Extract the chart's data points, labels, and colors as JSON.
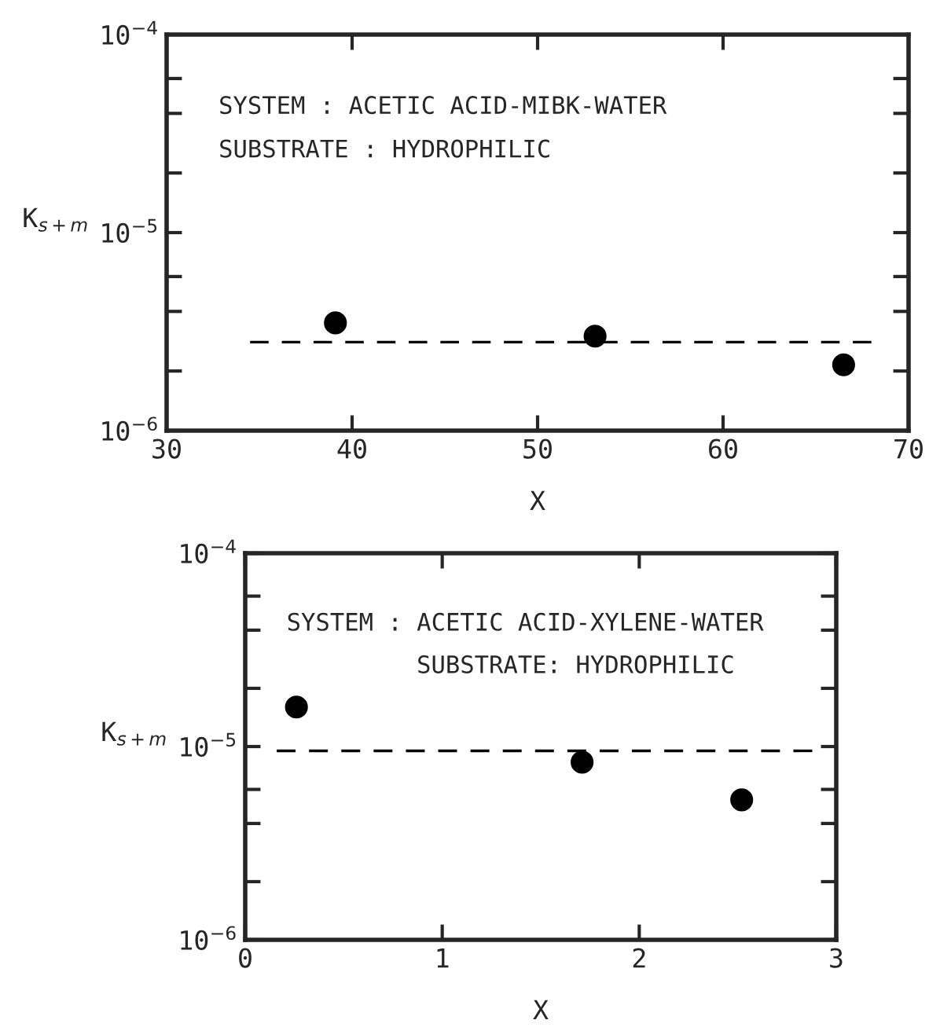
{
  "chart_data": [
    {
      "type": "scatter",
      "xlabel": "X",
      "ylabel": "K$_{s+m}$",
      "log": "y",
      "marker": "circle",
      "color": "#000000",
      "x": [
        39.1,
        53.1,
        66.5
      ],
      "values": [
        3.5e-06,
        3e-06,
        2.15e-06
      ],
      "series": [
        {
          "type": "line",
          "line_style": "dashed",
          "marker": "none",
          "color": "#000000",
          "x": [
            34.5,
            68
          ],
          "values": [
            2.8e-06,
            2.8e-06
          ]
        }
      ],
      "xlim": [
        30,
        70
      ],
      "xticks": [
        30,
        40,
        50,
        60,
        70
      ],
      "ylim": [
        1e-06,
        0.0001
      ],
      "yticks": [
        {
          "value": 1e-06,
          "label": "10$^{−6}$"
        },
        {
          "value": 2e-06,
          "label": null
        },
        {
          "value": 4e-06,
          "label": null
        },
        {
          "value": 6e-06,
          "label": null
        },
        {
          "value": 1e-05,
          "label": "10$^{−5}$"
        },
        {
          "value": 2e-05,
          "label": null
        },
        {
          "value": 4e-05,
          "label": null
        },
        {
          "value": 6e-05,
          "label": null
        },
        {
          "value": 0.0001,
          "label": "10$^{−4}$"
        }
      ],
      "annotations": [
        "SYSTEM : ACETIC ACID-MIBK-WATER",
        "SUBSTRATE : HYDROPHILIC"
      ]
    },
    {
      "type": "scatter",
      "xlabel": "X",
      "ylabel": "K$_{s+m}$",
      "log": "y",
      "marker": "circle",
      "color": "#000000",
      "x": [
        0.26,
        1.71,
        2.52
      ],
      "values": [
        1.6e-05,
        8.3e-06,
        5.3e-06
      ],
      "series": [
        {
          "type": "line",
          "line_style": "dashed",
          "marker": "none",
          "color": "#000000",
          "x": [
            0.16,
            2.88
          ],
          "values": [
            9.5e-06,
            9.5e-06
          ]
        }
      ],
      "xlim": [
        0,
        3
      ],
      "xticks": [
        0,
        1,
        2,
        3
      ],
      "ylim": [
        1e-06,
        0.0001
      ],
      "yticks": [
        {
          "value": 1e-06,
          "label": "10$^{−6}$"
        },
        {
          "value": 2e-06,
          "label": null
        },
        {
          "value": 4e-06,
          "label": null
        },
        {
          "value": 6e-06,
          "label": null
        },
        {
          "value": 1e-05,
          "label": "10$^{−5}$"
        },
        {
          "value": 2e-05,
          "label": null
        },
        {
          "value": 4e-05,
          "label": null
        },
        {
          "value": 6e-05,
          "label": null
        },
        {
          "value": 0.0001,
          "label": "10$^{−4}$"
        }
      ],
      "annotations": [
        "SYSTEM : ACETIC ACID-XYLENE-WATER",
        "SUBSTRATE: HYDROPHILIC"
      ]
    }
  ]
}
